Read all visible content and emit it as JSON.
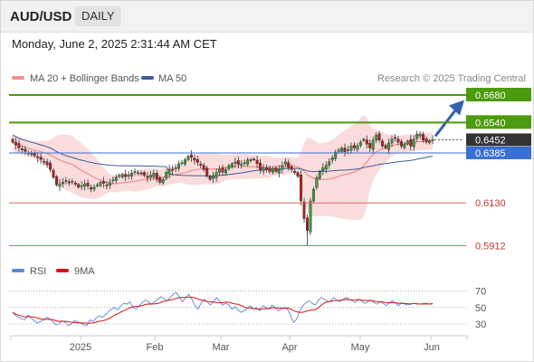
{
  "header": {
    "symbol": "AUD/USD",
    "period": "DAILY",
    "datetime": "Monday, June 2, 2025 2:31:44 AM CET"
  },
  "legend": {
    "ma20": "MA 20 + Bollinger Bands",
    "ma50": "MA 50",
    "copyright": "Research © 2025 Trading Central"
  },
  "colors": {
    "resistance": "#4c9a0e",
    "support": "#e06666",
    "pivot": "#3a6fd8",
    "current": "#333333",
    "ma20": "#ee8080",
    "ma50": "#3d5a9e",
    "bands": "#f8d0d0",
    "up": "#3a9a3a",
    "down": "#b02020",
    "rsi": "#5b86d6",
    "rsi_ma": "#dd1111",
    "arrow": "#2f62b0"
  },
  "chart_data": {
    "type": "candlestick",
    "instrument": "AUD/USD",
    "timeframe": "Daily",
    "x_labels": [
      "2025",
      "Feb",
      "Mar",
      "Apr",
      "May",
      "Jun"
    ],
    "y_range": [
      0.588,
      0.67
    ],
    "levels": [
      {
        "kind": "resistance",
        "label": "0.6680",
        "value": 0.668
      },
      {
        "kind": "resistance",
        "label": "0.6540",
        "value": 0.654
      },
      {
        "kind": "current",
        "label": "0.6452",
        "value": 0.6452
      },
      {
        "kind": "pivot",
        "label": "0.6385",
        "value": 0.6385
      },
      {
        "kind": "support",
        "label": "0.6130",
        "value": 0.613
      },
      {
        "kind": "support",
        "label": "0.5912",
        "value": 0.5912
      }
    ],
    "candles_close": [
      0.644,
      0.6425,
      0.641,
      0.64,
      0.6392,
      0.6385,
      0.6378,
      0.637,
      0.636,
      0.635,
      0.634,
      0.6325,
      0.63,
      0.626,
      0.6222,
      0.6228,
      0.6236,
      0.6242,
      0.6232,
      0.624,
      0.6225,
      0.621,
      0.6218,
      0.6228,
      0.6216,
      0.62,
      0.6212,
      0.6222,
      0.6236,
      0.623,
      0.622,
      0.6235,
      0.6248,
      0.6262,
      0.627,
      0.6276,
      0.6264,
      0.627,
      0.6282,
      0.629,
      0.6284,
      0.6278,
      0.627,
      0.6258,
      0.6272,
      0.6282,
      0.625,
      0.6236,
      0.625,
      0.6286,
      0.6302,
      0.6296,
      0.631,
      0.633,
      0.6336,
      0.635,
      0.6368,
      0.6362,
      0.6348,
      0.6336,
      0.6322,
      0.63,
      0.6268,
      0.625,
      0.6266,
      0.6286,
      0.6302,
      0.6286,
      0.63,
      0.632,
      0.633,
      0.6338,
      0.6326,
      0.633,
      0.6336,
      0.635,
      0.6346,
      0.6352,
      0.633,
      0.63,
      0.631,
      0.63,
      0.629,
      0.6305,
      0.629,
      0.63,
      0.632,
      0.634,
      0.631,
      0.63,
      0.6285,
      0.6265,
      0.614,
      0.605,
      0.599,
      0.614,
      0.62,
      0.626,
      0.629,
      0.631,
      0.6322,
      0.634,
      0.636,
      0.6388,
      0.64,
      0.641,
      0.639,
      0.6402,
      0.642,
      0.641,
      0.6422,
      0.644,
      0.6455,
      0.643,
      0.641,
      0.645,
      0.6475,
      0.645,
      0.642,
      0.641,
      0.6435,
      0.6455,
      0.646,
      0.644,
      0.642,
      0.643,
      0.6445,
      0.642,
      0.6455,
      0.648,
      0.648,
      0.645,
      0.644,
      0.6448,
      0.6452
    ],
    "projection": {
      "from": 0.6452,
      "to": 0.665
    },
    "rsi": {
      "levels": [
        70,
        50,
        30
      ],
      "legend": [
        "RSI",
        "9MA"
      ],
      "values": [
        44,
        40,
        38,
        36,
        35,
        41,
        37,
        34,
        31,
        33,
        35,
        38,
        36,
        33,
        29,
        30,
        34,
        32,
        28,
        30,
        34,
        33,
        31,
        29,
        28,
        35,
        33,
        37,
        40,
        38,
        41,
        45,
        48,
        50,
        47,
        52,
        55,
        54,
        57,
        50,
        48,
        52,
        56,
        59,
        57,
        54,
        57,
        60,
        63,
        61,
        58,
        62,
        66,
        68,
        63,
        57,
        62,
        66,
        60,
        52,
        48,
        55,
        60,
        57,
        53,
        57,
        62,
        58,
        53,
        55,
        53,
        48,
        51,
        47,
        44,
        46,
        49,
        52,
        48,
        50,
        46,
        52,
        50,
        48,
        53,
        50,
        46,
        48,
        50,
        48,
        40,
        32,
        36,
        46,
        52,
        56,
        58,
        55,
        53,
        59,
        62,
        60,
        57,
        58,
        62,
        59,
        57,
        60,
        62,
        60,
        58,
        56,
        60,
        58,
        55,
        57,
        59,
        56,
        54,
        57,
        55,
        52,
        56,
        58,
        55,
        52,
        56,
        54,
        53,
        54,
        55,
        54,
        54,
        55,
        55,
        54,
        55
      ]
    }
  }
}
